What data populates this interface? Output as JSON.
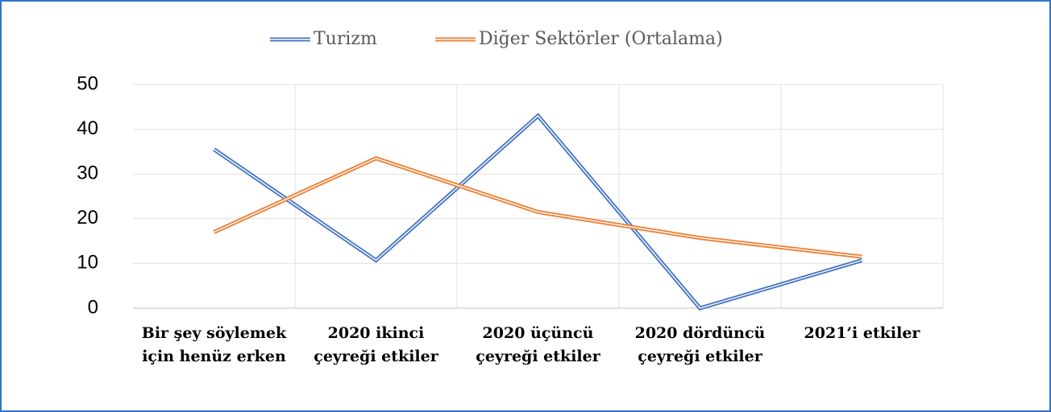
{
  "chart_data": {
    "type": "line",
    "categories": [
      "Bir şey söylemek için henüz erken",
      "2020 ikinci çeyreği etkiler",
      "2020 üçüncü çeyreği etkiler",
      "2020 dördüncü çeyreği etkiler",
      "2021’i etkiler"
    ],
    "series": [
      {
        "name": "Turizm",
        "color": "#4472c4",
        "values": [
          35.5,
          10.7,
          43,
          0,
          10.7
        ]
      },
      {
        "name": "Diğer Sektörler (Ortalama)",
        "color": "#ed7d31",
        "values": [
          17,
          33.5,
          21.5,
          15.7,
          11.5
        ]
      }
    ],
    "ylim": [
      0,
      50
    ],
    "yticks": [
      0,
      10,
      20,
      30,
      40,
      50
    ],
    "grid": true,
    "legend": "top"
  }
}
